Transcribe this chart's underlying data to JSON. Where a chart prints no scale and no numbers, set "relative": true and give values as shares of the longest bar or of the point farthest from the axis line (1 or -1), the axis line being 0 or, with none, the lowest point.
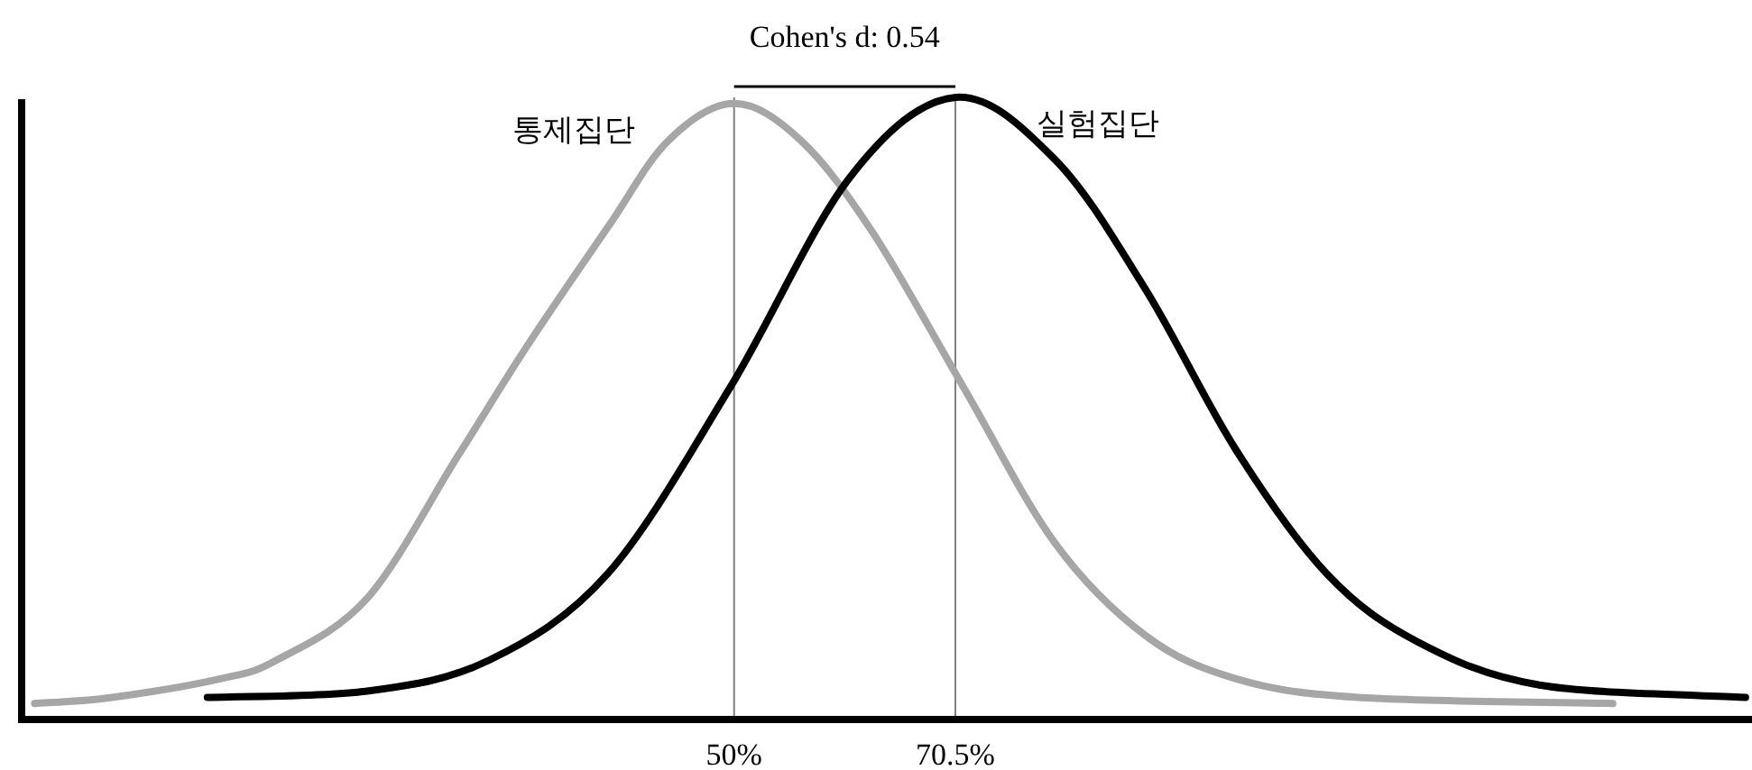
{
  "chart_data": {
    "type": "line",
    "relative": true,
    "legend": false,
    "grid": false,
    "tick_labels": "x",
    "marker": "none",
    "line_style": "solid",
    "xlim": [
      -16,
      144.3
    ],
    "xticks": [
      {
        "value": 50,
        "label": "50%"
      },
      {
        "value": 70.5,
        "label": "70.5%"
      }
    ],
    "annotations": [
      "Cohen's d: 0.54"
    ],
    "ref_lines": [
      {
        "axis": "x",
        "value": 50,
        "label": null,
        "color": "#808080"
      },
      {
        "axis": "x",
        "value": 70.5,
        "label": null,
        "color": "#808080"
      }
    ],
    "series": [
      {
        "name": "통제집단",
        "color": "#a6a6a6",
        "x": [
          -14.8,
          -7.6,
          2.4,
          7.6,
          16,
          24.4,
          30.9,
          38.3,
          43.9,
          50,
          56.2,
          62.9,
          71.3,
          79.7,
          88.1,
          96.5,
          107.8,
          131.4
        ],
        "values": [
          0.02,
          0.03,
          0.06,
          0.09,
          0.19,
          0.42,
          0.6,
          0.79,
          0.93,
          0.99,
          0.93,
          0.78,
          0.53,
          0.28,
          0.13,
          0.06,
          0.03,
          0.02
        ]
      },
      {
        "name": "실험집단",
        "color": "#000000",
        "x": [
          1.2,
          16,
          27.3,
          38.3,
          49.6,
          60.7,
          70.5,
          79.7,
          88.1,
          96.5,
          104.9,
          113.3,
          124.6,
          143.7
        ],
        "values": [
          0.03,
          0.04,
          0.09,
          0.23,
          0.53,
          0.87,
          1,
          0.9,
          0.69,
          0.43,
          0.23,
          0.12,
          0.05,
          0.03
        ]
      }
    ]
  }
}
